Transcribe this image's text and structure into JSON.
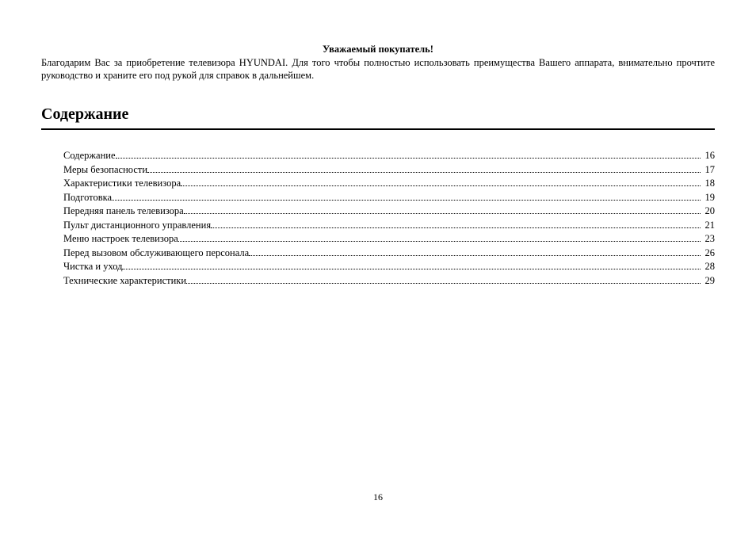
{
  "greeting_title": "Уважаемый покупатель!",
  "intro_text": "Благодарим Вас за приобретение телевизора HYUNDAI. Для того чтобы полностью использовать преимущества Вашего аппарата, внимательно прочтите руководство и храните его под рукой для справок в дальнейшем.",
  "section_heading": "Содержание",
  "toc": [
    {
      "label": "Содержание",
      "page": "16"
    },
    {
      "label": "Меры безопасности",
      "page": "17"
    },
    {
      "label": "Характеристики телевизора",
      "page": "18"
    },
    {
      "label": "Подготовка",
      "page": "19"
    },
    {
      "label": "Передняя панель телевизора",
      "page": "20"
    },
    {
      "label": "Пульт дистанционного управления",
      "page": "21"
    },
    {
      "label": "Меню настроек телевизора",
      "page": "23"
    },
    {
      "label": "Перед вызовом обслуживающего персонала",
      "page": "26"
    },
    {
      "label": "Чистка и уход",
      "page": "28"
    },
    {
      "label": "Технические характеристики",
      "page": "29"
    }
  ],
  "page_number": "16",
  "colors": {
    "text": "#000000",
    "background": "#ffffff",
    "rule": "#000000"
  }
}
